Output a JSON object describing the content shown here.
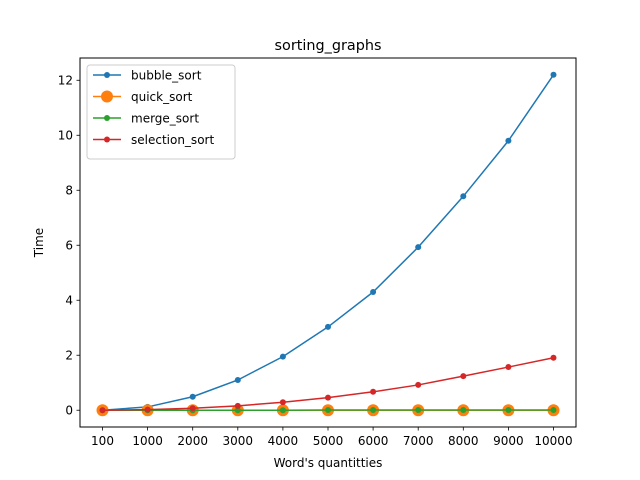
{
  "chart_data": {
    "type": "line",
    "title": "sorting_graphs",
    "xlabel": "Word's quantitties",
    "ylabel": "Time",
    "categories": [
      "100",
      "1000",
      "2000",
      "3000",
      "4000",
      "5000",
      "6000",
      "7000",
      "8000",
      "9000",
      "10000"
    ],
    "ylim": [
      -0.61,
      12.81
    ],
    "yticks": [
      0,
      2,
      4,
      6,
      8,
      10,
      12
    ],
    "grid": false,
    "legend_position": "top-left",
    "series": [
      {
        "name": "bubble_sort",
        "color": "#1f77b4",
        "marker_size": 3,
        "values": [
          0.0,
          0.12,
          0.49,
          1.1,
          1.95,
          3.03,
          4.3,
          5.93,
          7.78,
          9.8,
          12.2
        ]
      },
      {
        "name": "quick_sort",
        "color": "#ff7f0e",
        "marker_size": 6,
        "values": [
          0.0,
          0.0,
          0.0,
          0.0,
          0.0,
          0.0,
          0.0,
          0.0,
          0.0,
          0.0,
          0.0
        ]
      },
      {
        "name": "merge_sort",
        "color": "#2ca02c",
        "marker_size": 3,
        "values": [
          0.0,
          0.0,
          0.0,
          0.0,
          0.0,
          0.01,
          0.01,
          0.01,
          0.01,
          0.01,
          0.01
        ]
      },
      {
        "name": "selection_sort",
        "color": "#d62728",
        "marker_size": 3,
        "values": [
          0.0,
          0.02,
          0.07,
          0.16,
          0.29,
          0.46,
          0.67,
          0.92,
          1.24,
          1.57,
          1.91
        ]
      }
    ]
  }
}
